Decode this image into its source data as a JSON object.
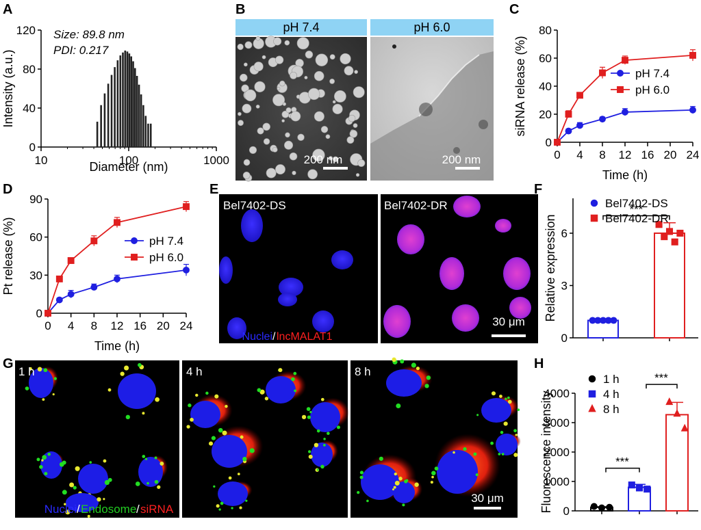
{
  "panels": {
    "A": {
      "label": "A",
      "ann1": "Size: 89.8 nm",
      "ann2": "PDI: 0.217",
      "chart_data": {
        "type": "bar",
        "xlabel": "Diameter (nm)",
        "ylabel": "Intensity (a.u.)",
        "xscale": "log",
        "xlim": [
          10,
          1000
        ],
        "ylim": [
          0,
          120
        ],
        "xticks": [
          "10",
          "100",
          "1000"
        ],
        "yticks": [
          "0",
          "40",
          "80",
          "120"
        ],
        "x": [
          43.8,
          48.4,
          53.2,
          58.4,
          63.8,
          69.3,
          74.8,
          80.3,
          85.8,
          91.1,
          96.4,
          101.6,
          106.9,
          112.4,
          118.2,
          124.4,
          131.2,
          138.6,
          146.9,
          156.2,
          166.8,
          178.5
        ],
        "values": [
          26,
          43,
          55,
          65,
          74,
          82,
          89,
          94,
          97,
          99,
          98,
          96,
          93,
          88,
          81,
          73,
          64,
          54,
          43,
          32,
          24,
          24
        ]
      }
    },
    "B": {
      "label": "B",
      "headers": [
        "pH 7.4",
        "pH 6.0"
      ],
      "scalebars": [
        "200 nm",
        "200 nm"
      ]
    },
    "C": {
      "label": "C",
      "chart_data": {
        "type": "line",
        "xlabel": "Time (h)",
        "ylabel": "siRNA release (%)",
        "xlim": [
          0,
          24
        ],
        "ylim": [
          0,
          80
        ],
        "xticks": [
          "0",
          "4",
          "8",
          "12",
          "16",
          "20",
          "24"
        ],
        "yticks": [
          "0",
          "20",
          "40",
          "60",
          "80"
        ],
        "x": [
          0,
          2,
          4,
          8,
          12,
          24
        ],
        "series": [
          {
            "name": "pH 7.4",
            "color": "#1f1fe0",
            "marker": "circle",
            "values": [
              0,
              8,
              12,
              16.5,
              21.5,
              23
            ],
            "err": [
              0.5,
              1.5,
              2,
              1.5,
              2.5,
              2.5
            ]
          },
          {
            "name": "pH 6.0",
            "color": "#e01f1f",
            "marker": "square",
            "values": [
              0,
              20,
              33.5,
              49.5,
              58.5,
              62
            ],
            "err": [
              0.5,
              2.5,
              2,
              4,
              3,
              4
            ]
          }
        ],
        "legend": "right"
      }
    },
    "D": {
      "label": "D",
      "chart_data": {
        "type": "line",
        "xlabel": "Time (h)",
        "ylabel": "Pt release (%)",
        "xlim": [
          0,
          24
        ],
        "ylim": [
          0,
          90
        ],
        "xticks": [
          "0",
          "4",
          "8",
          "12",
          "16",
          "20",
          "24"
        ],
        "yticks": [
          "0",
          "30",
          "60",
          "90"
        ],
        "x": [
          0,
          2,
          4,
          8,
          12,
          24
        ],
        "series": [
          {
            "name": "pH 7.4",
            "color": "#1f1fe0",
            "marker": "circle",
            "values": [
              0,
              10.5,
              15,
              20.5,
              27,
              34
            ],
            "err": [
              0.5,
              1.5,
              3,
              2.5,
              3,
              4.5
            ]
          },
          {
            "name": "pH 6.0",
            "color": "#e01f1f",
            "marker": "square",
            "values": [
              0,
              27,
              41.5,
              57,
              71.5,
              84
            ],
            "err": [
              0.5,
              2,
              2,
              4,
              4,
              4
            ]
          }
        ],
        "legend": "right"
      }
    },
    "E": {
      "label": "E",
      "titles": [
        "Bel7402-DS",
        "Bel7402-DR"
      ],
      "stain1": "Nuclei",
      "slash": "/",
      "stain2": "lncMALAT1",
      "scalebar": "30 μm"
    },
    "F": {
      "label": "F",
      "chart_data": {
        "type": "bar",
        "ylabel": "Relative expression",
        "ylim": [
          0,
          8
        ],
        "yticks": [
          "0",
          "3",
          "6"
        ],
        "categories": [
          "Bel7402-DS",
          "Bel7402-DR"
        ],
        "series": [
          {
            "name": "Bel7402-DS",
            "color": "#1f1fe0",
            "marker": "circle",
            "mean": 1.0,
            "err": 0.05,
            "points": [
              1.0,
              1.0,
              1.0,
              1.0,
              1.0
            ]
          },
          {
            "name": "Bel7402-DR",
            "color": "#e01f1f",
            "marker": "square",
            "mean": 6.0,
            "err": 0.6,
            "points": [
              6.5,
              5.8,
              6.1,
              5.5,
              6.0
            ]
          }
        ],
        "significance": "***",
        "legend": "top-left"
      }
    },
    "G": {
      "label": "G",
      "times": [
        "1 h",
        "4 h",
        "8 h"
      ],
      "stain1": "Nuclei",
      "stain2": "Endosome",
      "stain3": "siRNA",
      "slash": "/",
      "scalebar": "30 μm"
    },
    "H": {
      "label": "H",
      "chart_data": {
        "type": "bar",
        "ylabel": "Fluorescence intensity",
        "ylim": [
          0,
          4000
        ],
        "yticks": [
          "0",
          "1000",
          "2000",
          "3000",
          "4000"
        ],
        "categories": [
          "1 h",
          "4 h",
          "8 h"
        ],
        "series": [
          {
            "name": "1 h",
            "color": "#000000",
            "marker": "circle",
            "mean": 120,
            "err": 20,
            "points": [
              150,
              100,
              120
            ]
          },
          {
            "name": "4 h",
            "color": "#1f1fe0",
            "marker": "square",
            "mean": 800,
            "err": 100,
            "points": [
              880,
              780,
              740
            ]
          },
          {
            "name": "8 h",
            "color": "#e01f1f",
            "marker": "triangle",
            "mean": 3270,
            "err": 420,
            "points": [
              3700,
              3300,
              2800
            ]
          }
        ],
        "significance": [
          "***",
          "***"
        ],
        "legend": "top-left"
      }
    }
  }
}
